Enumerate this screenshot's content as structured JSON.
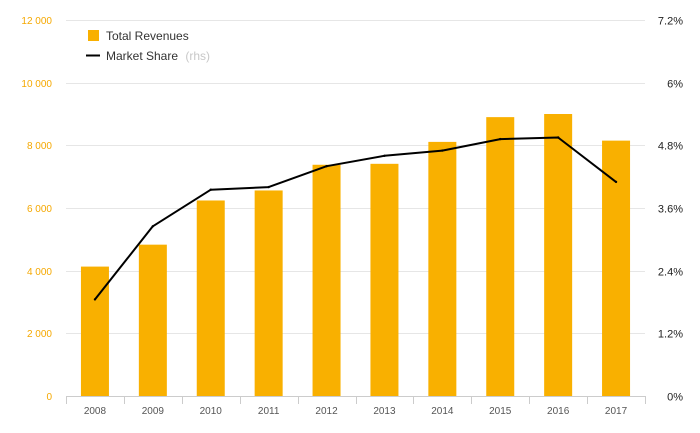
{
  "chart_data": {
    "type": "bar",
    "categories": [
      "2008",
      "2009",
      "2010",
      "2011",
      "2012",
      "2013",
      "2014",
      "2015",
      "2016",
      "2017"
    ],
    "series": [
      {
        "name": "Total Revenues",
        "type": "bar",
        "axis": "left",
        "color": "#f9b000",
        "values": [
          4130,
          4830,
          6240,
          6560,
          7380,
          7410,
          8110,
          8900,
          9000,
          8150
        ]
      },
      {
        "name": "Market Share",
        "type": "line",
        "axis": "right",
        "color": "#000000",
        "values": [
          1.85,
          3.25,
          3.95,
          4.0,
          4.4,
          4.6,
          4.7,
          4.92,
          4.95,
          4.1
        ]
      }
    ],
    "legend": {
      "position": "top-left",
      "items": [
        {
          "label": "Total Revenues",
          "suffix": ""
        },
        {
          "label": "Market Share",
          "suffix": "(rhs)"
        }
      ]
    },
    "y_left": {
      "lim": [
        0,
        12000
      ],
      "ticks": [
        0,
        2000,
        4000,
        6000,
        8000,
        10000,
        12000
      ],
      "tick_labels": [
        "0",
        "2 000",
        "4 000",
        "6 000",
        "8 000",
        "10 000",
        "12 000"
      ],
      "color": "#f5a800"
    },
    "y_right": {
      "lim": [
        0,
        7.2
      ],
      "ticks": [
        0,
        1.2,
        2.4,
        3.6,
        4.8,
        6,
        7.2
      ],
      "tick_labels": [
        "0%",
        "1.2%",
        "2.4%",
        "3.6%",
        "4.8%",
        "6%",
        "7.2%"
      ]
    },
    "grid": true
  }
}
